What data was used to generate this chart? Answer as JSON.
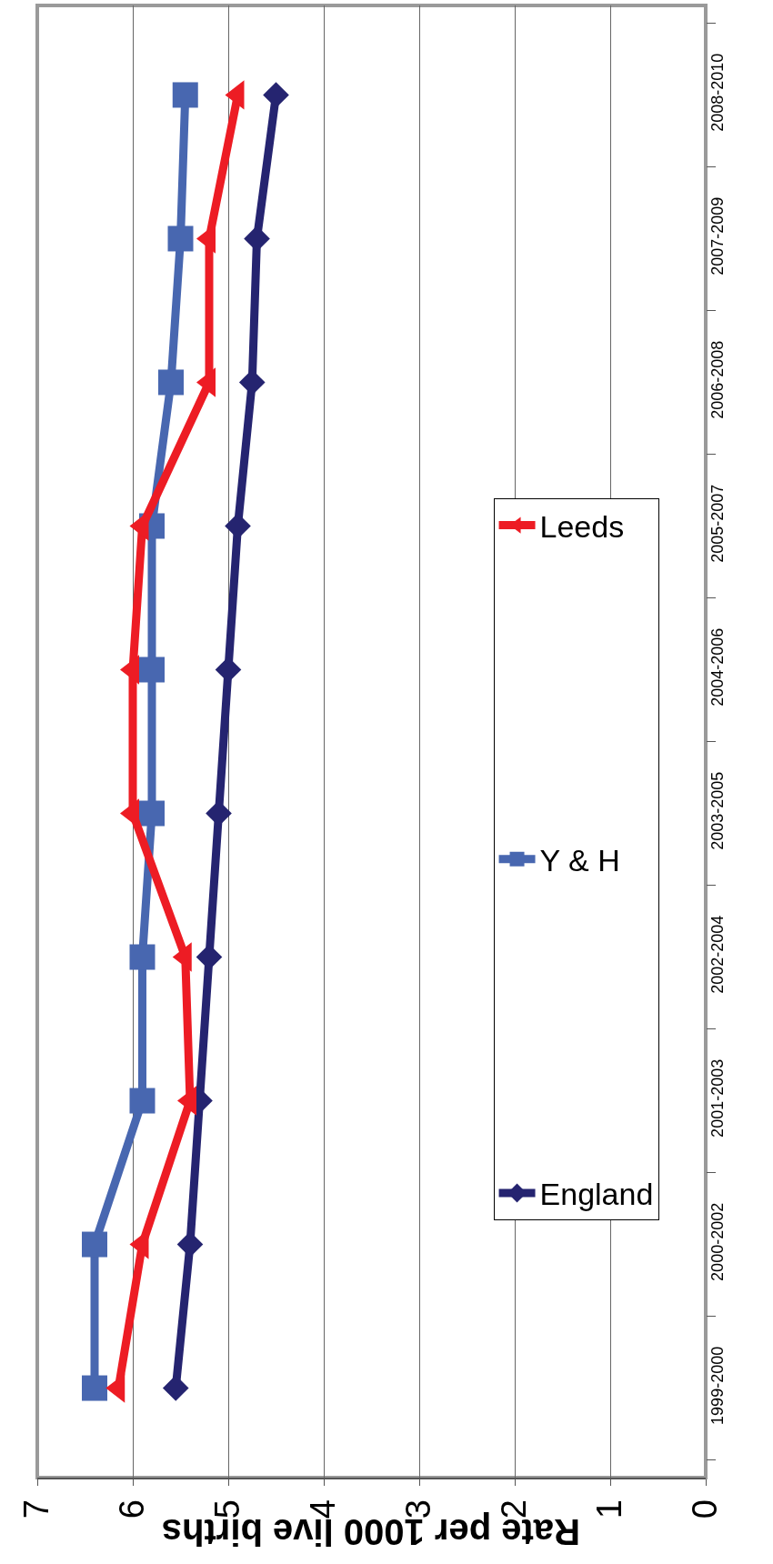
{
  "chart_data": {
    "type": "line",
    "orientation": "horizontal",
    "categories": [
      "2008-2010",
      "2007-2009",
      "2006-2008",
      "2005-2007",
      "2004-2006",
      "2003-2005",
      "2002-2004",
      "2001-2003",
      "2000-2002",
      "1999-2000"
    ],
    "series": [
      {
        "name": "England",
        "color": "#252470",
        "marker": "diamond",
        "values": [
          4.5,
          4.7,
          4.75,
          4.9,
          5.0,
          5.1,
          5.2,
          5.3,
          5.4,
          5.55
        ]
      },
      {
        "name": "Y & H",
        "color": "#4867b0",
        "marker": "square",
        "values": [
          5.45,
          5.5,
          5.6,
          5.8,
          5.8,
          5.8,
          5.9,
          5.9,
          6.4,
          6.4
        ]
      },
      {
        "name": "Leeds",
        "color": "#ed1c24",
        "marker": "triangle",
        "values": [
          4.9,
          5.2,
          5.2,
          5.9,
          6.0,
          6.0,
          5.45,
          5.4,
          5.9,
          6.15
        ]
      }
    ],
    "xlim": [
      7,
      0
    ],
    "xticks": [
      0,
      1,
      2,
      3,
      4,
      5,
      6,
      7
    ],
    "xlabel": "Rate per 1000 live births",
    "grid": "x",
    "legend": "right",
    "line_style": "solid"
  }
}
